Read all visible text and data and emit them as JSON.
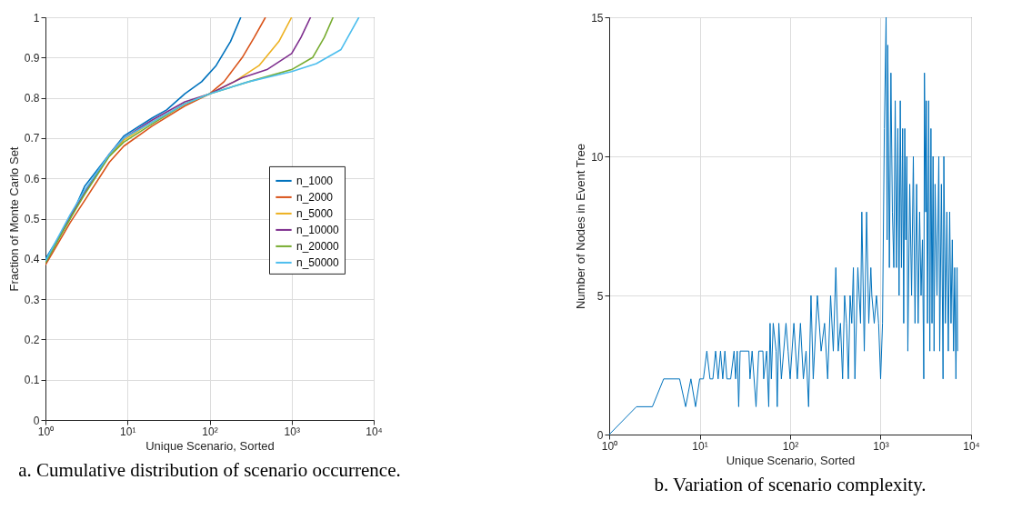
{
  "chart_data": [
    {
      "type": "line",
      "xlabel": "Unique Scenario, Sorted",
      "ylabel": "Fraction of Monte Carlo Set",
      "log": "x",
      "grid": true,
      "legend": "right",
      "line_style": "solid",
      "xlim": [
        1,
        10000
      ],
      "xticks": [
        {
          "value": 1,
          "label": "10⁰"
        },
        {
          "value": 10,
          "label": "10¹"
        },
        {
          "value": 100,
          "label": "10²"
        },
        {
          "value": 1000,
          "label": "10³"
        },
        {
          "value": 10000,
          "label": "10⁴"
        }
      ],
      "ylim": [
        0,
        1
      ],
      "yticks": [
        0,
        0.1,
        0.2,
        0.3,
        0.4,
        0.5,
        0.6,
        0.7,
        0.8,
        0.9,
        1
      ],
      "annotations": [
        "a. Cumulative distribution of scenario occurrence."
      ],
      "series": [
        {
          "name": "n_1000",
          "color": "#0072bd",
          "x": [
            1,
            2,
            3,
            6,
            9,
            20,
            30,
            50,
            80,
            120,
            180,
            240
          ],
          "values": [
            0.4,
            0.5,
            0.58,
            0.66,
            0.705,
            0.75,
            0.77,
            0.81,
            0.84,
            0.88,
            0.94,
            1
          ]
        },
        {
          "name": "n_2000",
          "color": "#d95319",
          "x": [
            1,
            2,
            3,
            6,
            9,
            20,
            50,
            100,
            150,
            250,
            350,
            480
          ],
          "values": [
            0.385,
            0.49,
            0.545,
            0.64,
            0.68,
            0.73,
            0.78,
            0.81,
            0.84,
            0.9,
            0.95,
            1
          ]
        },
        {
          "name": "n_5000",
          "color": "#edb120",
          "x": [
            6,
            9,
            20,
            50,
            100,
            200,
            400,
            700,
            1000
          ],
          "values": [
            0.655,
            0.695,
            0.74,
            0.785,
            0.81,
            0.84,
            0.88,
            0.94,
            1
          ]
        },
        {
          "name": "n_10000",
          "color": "#7e2f8e",
          "x": [
            1,
            2,
            3,
            6,
            9,
            20,
            50,
            100,
            250,
            500,
            1000,
            1300,
            1700
          ],
          "values": [
            0.39,
            0.505,
            0.565,
            0.66,
            0.7,
            0.745,
            0.79,
            0.81,
            0.85,
            0.87,
            0.91,
            0.95,
            1
          ]
        },
        {
          "name": "n_20000",
          "color": "#77ac30",
          "x": [
            1,
            2,
            3,
            6,
            9,
            20,
            50,
            100,
            300,
            1000,
            1800,
            2500,
            3200
          ],
          "values": [
            0.39,
            0.5,
            0.56,
            0.655,
            0.69,
            0.735,
            0.785,
            0.81,
            0.84,
            0.87,
            0.9,
            0.95,
            1
          ]
        },
        {
          "name": "n_50000",
          "color": "#4dbeee",
          "x": [
            1,
            2,
            3,
            6,
            9,
            20,
            50,
            100,
            300,
            1000,
            2000,
            4000,
            6600
          ],
          "values": [
            0.395,
            0.51,
            0.57,
            0.66,
            0.7,
            0.74,
            0.785,
            0.81,
            0.84,
            0.865,
            0.885,
            0.92,
            1
          ]
        }
      ]
    },
    {
      "type": "line",
      "xlabel": "Unique Scenario, Sorted",
      "ylabel": "Number of Nodes in Event Tree",
      "log": "x",
      "grid": true,
      "line_style": "solid",
      "xlim": [
        1,
        10000
      ],
      "xticks": [
        {
          "value": 1,
          "label": "10⁰"
        },
        {
          "value": 10,
          "label": "10¹"
        },
        {
          "value": 100,
          "label": "10²"
        },
        {
          "value": 1000,
          "label": "10³"
        },
        {
          "value": 10000,
          "label": "10⁴"
        }
      ],
      "ylim": [
        0,
        15
      ],
      "yticks": [
        0,
        5,
        10,
        15
      ],
      "annotations": [
        "b.  Variation of scenario complexity."
      ],
      "series": [
        {
          "color": "#0072bd",
          "x": [
            1,
            2,
            3,
            4,
            6,
            7,
            8,
            9,
            10,
            11,
            12,
            13,
            14,
            15,
            16,
            17,
            18,
            19,
            20,
            22,
            24,
            25,
            26,
            27,
            28,
            35,
            36,
            38,
            42,
            45,
            50,
            51,
            55,
            58,
            60,
            62,
            65,
            70,
            72,
            75,
            80,
            90,
            95,
            100,
            110,
            120,
            130,
            140,
            150,
            160,
            170,
            180,
            200,
            220,
            240,
            260,
            280,
            300,
            320,
            340,
            360,
            380,
            400,
            420,
            440,
            460,
            480,
            500,
            520,
            560,
            600,
            620,
            660,
            700,
            740,
            780,
            800,
            850,
            900,
            950,
            1000,
            1050,
            1100,
            1150,
            1180,
            1200,
            1250,
            1300,
            1350,
            1400,
            1450,
            1500,
            1550,
            1600,
            1650,
            1700,
            1750,
            1800,
            1850,
            1900,
            1950,
            2000,
            2100,
            2200,
            2300,
            2400,
            2500,
            2600,
            2700,
            2800,
            2900,
            3000,
            3050,
            3150,
            3200,
            3300,
            3400,
            3500,
            3600,
            3700,
            3800,
            3900,
            4000,
            4200,
            4400,
            4500,
            4700,
            4900,
            5000,
            5200,
            5400,
            5600,
            5800,
            6000,
            6200,
            6400,
            6600,
            6800,
            7000,
            7100
          ],
          "values": [
            0,
            1,
            1,
            2,
            2,
            1,
            2,
            1,
            2,
            2,
            3,
            2,
            2,
            3,
            2,
            3,
            2,
            3,
            2,
            2,
            3,
            2,
            3,
            1,
            3,
            3,
            2,
            3,
            1,
            3,
            3,
            2,
            3,
            1,
            4,
            2,
            4,
            3,
            1,
            4,
            2,
            4,
            3,
            2,
            4,
            2,
            4,
            2,
            3,
            1,
            5,
            2,
            5,
            3,
            4,
            2,
            5,
            3,
            6,
            3,
            4,
            2,
            5,
            4,
            2,
            5,
            4,
            6,
            2,
            6,
            4,
            8,
            3,
            8,
            4,
            6,
            5,
            4,
            5,
            4,
            2,
            4,
            11,
            15,
            7,
            14,
            6,
            13,
            8,
            6,
            12,
            6,
            11,
            5,
            12,
            6,
            11,
            4,
            11,
            7,
            10,
            3,
            9,
            5,
            10,
            4,
            9,
            4,
            8,
            5,
            7,
            2,
            13,
            8,
            12,
            4,
            12,
            3,
            11,
            4,
            10,
            3,
            9,
            5,
            10,
            3,
            9,
            2,
            10,
            4,
            8,
            3,
            8,
            4,
            7,
            3,
            6,
            2,
            6,
            3
          ]
        }
      ]
    }
  ]
}
